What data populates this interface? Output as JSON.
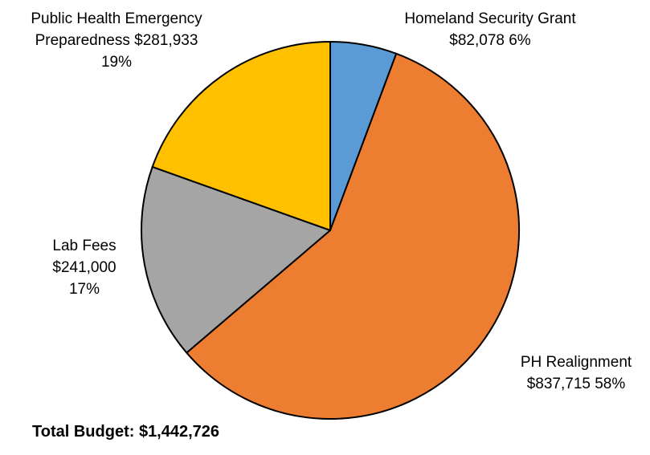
{
  "chart_data": {
    "type": "pie",
    "categories": [
      "Homeland Security Grant",
      "PH Realignment",
      "Lab Fees",
      "Public Health Emergency Preparedness"
    ],
    "values": [
      82078,
      837715,
      241000,
      281933
    ],
    "value_labels": [
      "$82,078",
      "$837,715",
      "$241,000",
      "$281,933"
    ],
    "percent_labels": [
      "6%",
      "58%",
      "17%",
      "19%"
    ],
    "colors": [
      "#5B9BD5",
      "#ED7D31",
      "#A5A5A5",
      "#FFC000"
    ],
    "start": "12 o'clock",
    "direction": "clockwise",
    "legend": "none",
    "total_label": "Total Budget: $1,442,726"
  },
  "labels": {
    "homeland": {
      "line1": "Homeland Security Grant",
      "line2": "$82,078 6%"
    },
    "ph_realignment": {
      "line1": "PH Realignment",
      "line2": "$837,715 58%"
    },
    "lab_fees": {
      "line1": "Lab Fees",
      "line2": "$241,000",
      "line3": "17%"
    },
    "phep": {
      "line1": "Public Health Emergency",
      "line2": "Preparedness $281,933",
      "line3": "19%"
    }
  }
}
